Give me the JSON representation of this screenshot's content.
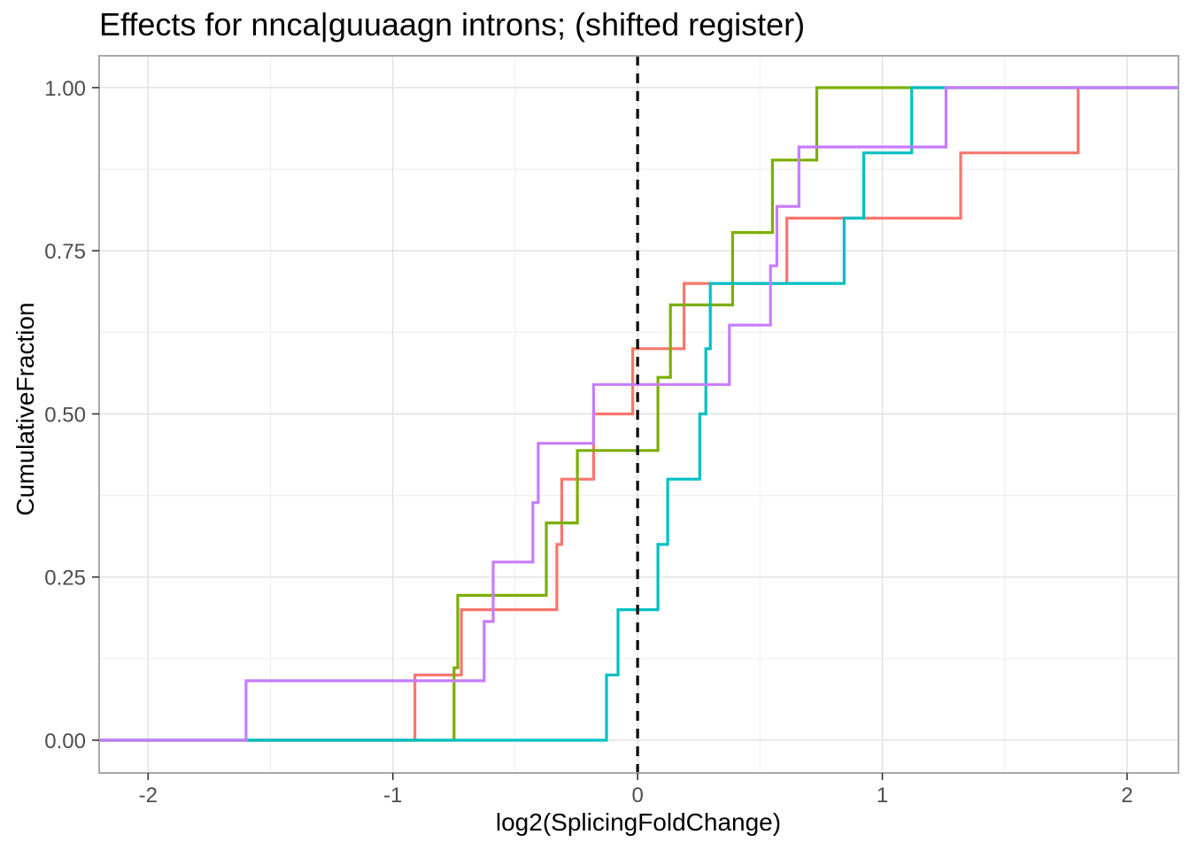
{
  "title": "Effects for nnca|guuaagn introns; (shifted register)",
  "chart_data": {
    "type": "line",
    "subtype": "ecdf-step",
    "title": "Effects for nnca|guuaagn introns; (shifted register)",
    "xlabel": "log2(SplicingFoldChange)",
    "ylabel": "CumulativeFraction",
    "xlim": [
      -2.2,
      2.21
    ],
    "ylim": [
      -0.0502,
      1.0488
    ],
    "grid": true,
    "legend": "none",
    "x_ticks": [
      {
        "v": -2,
        "label": "-2"
      },
      {
        "v": -1,
        "label": "-1"
      },
      {
        "v": 0,
        "label": "0"
      },
      {
        "v": 1,
        "label": "1"
      },
      {
        "v": 2,
        "label": "2"
      }
    ],
    "y_ticks": [
      {
        "v": 0.0,
        "label": "0.00"
      },
      {
        "v": 0.25,
        "label": "0.25"
      },
      {
        "v": 0.5,
        "label": "0.50"
      },
      {
        "v": 0.75,
        "label": "0.75"
      },
      {
        "v": 1.0,
        "label": "1.00"
      }
    ],
    "x_minor_ticks": [
      -1.5,
      -0.5,
      0.5,
      1.5
    ],
    "y_minor_ticks": [
      0.125,
      0.375,
      0.625,
      0.875
    ],
    "reference_line": {
      "x": 0,
      "style": "dashed",
      "color": "#000000"
    },
    "colors": {
      "grid_major": "#E3E3E3",
      "grid_minor": "#F0F0F0",
      "panel_border": "#A9A9A9",
      "tick_mark": "#333333",
      "tick_text": "#4D4D4D",
      "title_text": "#000000"
    },
    "series": [
      {
        "name": "series-salmon",
        "color": "#F8766D",
        "n": 10,
        "steps": [
          {
            "x": -0.91,
            "y": 0.1
          },
          {
            "x": -0.72,
            "y": 0.2
          },
          {
            "x": -0.33,
            "y": 0.3
          },
          {
            "x": -0.31,
            "y": 0.4
          },
          {
            "x": -0.18,
            "y": 0.5
          },
          {
            "x": -0.02,
            "y": 0.6
          },
          {
            "x": 0.19,
            "y": 0.7
          },
          {
            "x": 0.61,
            "y": 0.8
          },
          {
            "x": 1.32,
            "y": 0.9
          },
          {
            "x": 1.8,
            "y": 1.0
          }
        ]
      },
      {
        "name": "series-olive",
        "color": "#7CAE00",
        "n": 9,
        "steps": [
          {
            "x": -0.75,
            "y": 0.111
          },
          {
            "x": -0.735,
            "y": 0.222
          },
          {
            "x": -0.373,
            "y": 0.333
          },
          {
            "x": -0.246,
            "y": 0.444
          },
          {
            "x": 0.083,
            "y": 0.556
          },
          {
            "x": 0.134,
            "y": 0.667
          },
          {
            "x": 0.388,
            "y": 0.778
          },
          {
            "x": 0.551,
            "y": 0.889
          },
          {
            "x": 0.732,
            "y": 1.0
          }
        ]
      },
      {
        "name": "series-teal",
        "color": "#00BFC4",
        "n": 10,
        "steps": [
          {
            "x": -0.127,
            "y": 0.1
          },
          {
            "x": -0.08,
            "y": 0.2
          },
          {
            "x": 0.083,
            "y": 0.3
          },
          {
            "x": 0.123,
            "y": 0.4
          },
          {
            "x": 0.254,
            "y": 0.5
          },
          {
            "x": 0.279,
            "y": 0.6
          },
          {
            "x": 0.297,
            "y": 0.7
          },
          {
            "x": 0.844,
            "y": 0.8
          },
          {
            "x": 0.924,
            "y": 0.9
          },
          {
            "x": 1.12,
            "y": 1.0
          }
        ]
      },
      {
        "name": "series-purple",
        "color": "#C77CFF",
        "n": 11,
        "steps": [
          {
            "x": -1.6,
            "y": 0.091
          },
          {
            "x": -0.627,
            "y": 0.182
          },
          {
            "x": -0.59,
            "y": 0.273
          },
          {
            "x": -0.428,
            "y": 0.364
          },
          {
            "x": -0.406,
            "y": 0.455
          },
          {
            "x": -0.18,
            "y": 0.545
          },
          {
            "x": 0.375,
            "y": 0.636
          },
          {
            "x": 0.543,
            "y": 0.727
          },
          {
            "x": 0.569,
            "y": 0.818
          },
          {
            "x": 0.659,
            "y": 0.909
          },
          {
            "x": 1.26,
            "y": 1.0
          }
        ]
      }
    ]
  }
}
